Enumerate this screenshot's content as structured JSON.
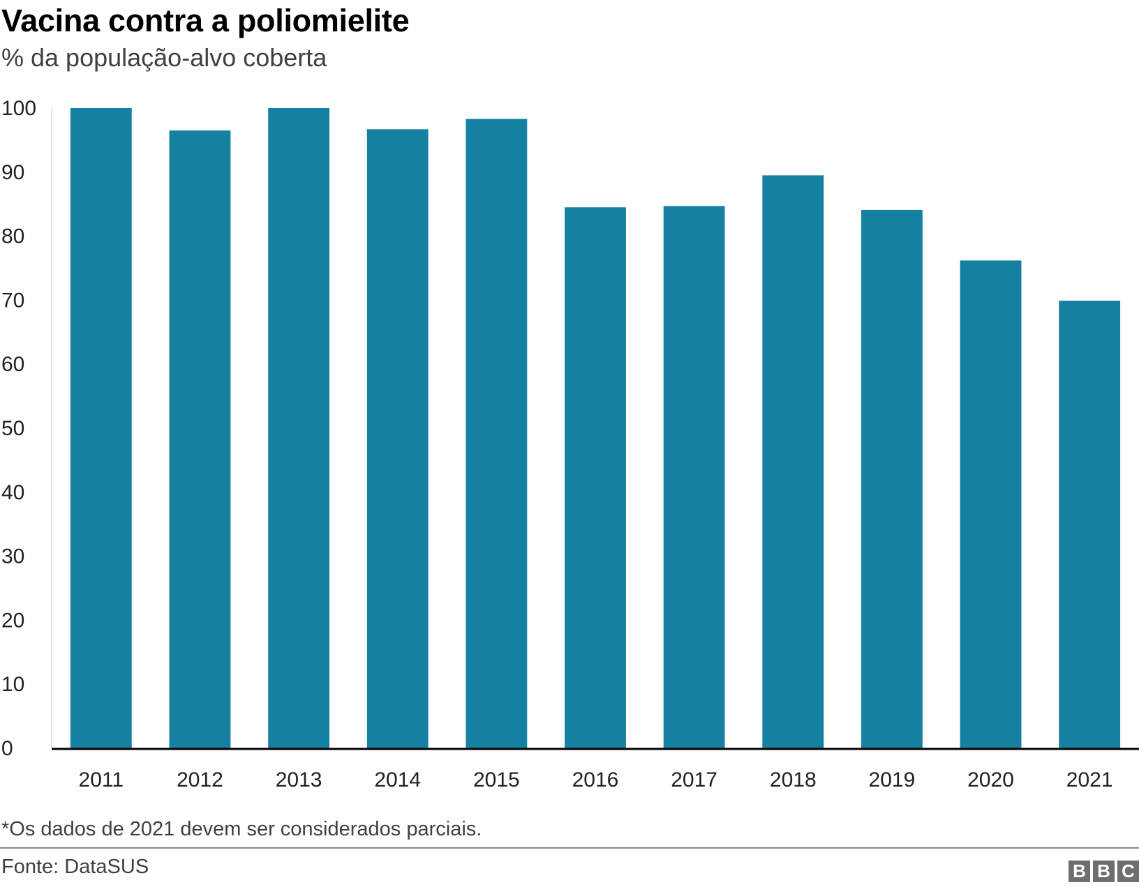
{
  "header": {
    "title": "Vacina contra a poliomielite",
    "subtitle": "% da população-alvo coberta"
  },
  "footer": {
    "note": "*Os dados de 2021 devem ser considerados parciais.",
    "source": "Fonte: DataSUS",
    "logo_letters": [
      "B",
      "B",
      "C"
    ]
  },
  "colors": {
    "bar": "#1580a2",
    "axis": "#000000"
  },
  "chart_data": {
    "type": "bar",
    "title": "Vacina contra a poliomielite",
    "subtitle": "% da população-alvo coberta",
    "categories": [
      "2011",
      "2012",
      "2013",
      "2014",
      "2015",
      "2016",
      "2017",
      "2018",
      "2019",
      "2020",
      "2021"
    ],
    "values": [
      100,
      96.5,
      100,
      96.7,
      98.3,
      84.5,
      84.7,
      89.5,
      84.1,
      76.2,
      69.9
    ],
    "ylim": [
      0,
      100
    ],
    "yticks": [
      0,
      10,
      20,
      30,
      40,
      50,
      60,
      70,
      80,
      90,
      100
    ],
    "grid": false,
    "legend": "none"
  }
}
